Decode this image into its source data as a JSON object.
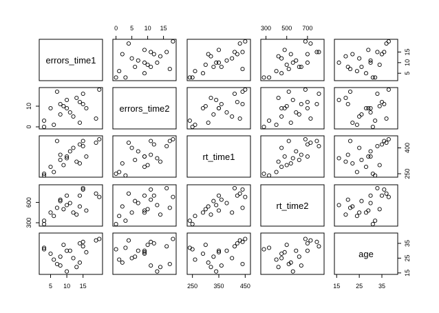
{
  "chart_data": {
    "type": "scatter",
    "title": "",
    "variables": [
      {
        "name": "errors_time1",
        "range": [
          1.5,
          21
        ],
        "ticks": [
          5,
          10,
          15
        ],
        "tick_labels": [
          "5",
          "10",
          "15"
        ]
      },
      {
        "name": "errors_time2",
        "range": [
          -1,
          19
        ],
        "ticks": [
          0,
          10
        ],
        "tick_labels": [
          "0",
          "10"
        ]
      },
      {
        "name": "rt_time1",
        "range": [
          230,
          470
        ],
        "ticks": [
          250,
          350,
          450
        ],
        "tick_labels": [
          "250",
          "350",
          "450"
        ]
      },
      {
        "name": "rt_time2",
        "range": [
          250,
          860
        ],
        "ticks": [
          300,
          500,
          700
        ],
        "tick_labels": [
          "300",
          "500",
          "700"
        ]
      },
      {
        "name": "age",
        "range": [
          14,
          42
        ],
        "ticks": [
          15,
          25,
          35
        ],
        "tick_labels": [
          "15",
          "25",
          "35"
        ]
      }
    ],
    "axes": {
      "top": [
        {
          "column": 1,
          "tick_labels": [
            "0",
            "5",
            "10",
            "15"
          ],
          "ticks": [
            0,
            5,
            10,
            15
          ]
        },
        {
          "column": 3,
          "tick_labels": [
            "300",
            "500",
            "700"
          ],
          "ticks": [
            300,
            500,
            700
          ]
        }
      ],
      "bottom": [
        {
          "column": 0,
          "tick_labels": [
            "5",
            "10",
            "15"
          ],
          "ticks": [
            5,
            10,
            15
          ]
        },
        {
          "column": 2,
          "tick_labels": [
            "250",
            "350",
            "450"
          ],
          "ticks": [
            250,
            350,
            450
          ]
        },
        {
          "column": 4,
          "tick_labels": [
            "15",
            "25",
            "35"
          ],
          "ticks": [
            15,
            25,
            35
          ]
        }
      ],
      "left": [
        {
          "row": 1,
          "tick_labels": [
            "0",
            "10"
          ],
          "ticks": [
            0,
            10
          ]
        },
        {
          "row": 3,
          "tick_labels": [
            "300",
            "600"
          ],
          "ticks": [
            300,
            600
          ]
        }
      ],
      "right": [
        {
          "row": 0,
          "tick_labels": [
            "5",
            "10",
            "15"
          ],
          "ticks": [
            5,
            10,
            15
          ]
        },
        {
          "row": 2,
          "tick_labels": [
            "250",
            "400"
          ],
          "ticks": [
            250,
            400
          ]
        },
        {
          "row": 4,
          "tick_labels": [
            "15",
            "25",
            "35"
          ],
          "ticks": [
            15,
            25,
            35
          ]
        }
      ]
    },
    "points": [
      {
        "errors_time1": 3,
        "errors_time2": 0,
        "rt_time1": 250,
        "rt_time2": 280,
        "age": 31
      },
      {
        "errors_time1": 3,
        "errors_time2": 3,
        "rt_time1": 240,
        "rt_time2": 330,
        "age": 32
      },
      {
        "errors_time1": 5,
        "errors_time2": 9,
        "rt_time1": 290,
        "rt_time2": 450,
        "age": 28
      },
      {
        "errors_time1": 6,
        "errors_time2": 1,
        "rt_time1": 260,
        "rt_time2": 400,
        "age": 24
      },
      {
        "errors_time1": 7,
        "errors_time2": 17,
        "rt_time1": 440,
        "rt_time2": 520,
        "age": 21
      },
      {
        "errors_time1": 8,
        "errors_time2": 6,
        "rt_time1": 330,
        "rt_time2": 620,
        "age": 26
      },
      {
        "errors_time1": 8,
        "errors_time2": 11,
        "rt_time1": 360,
        "rt_time2": 640,
        "age": 20
      },
      {
        "errors_time1": 9,
        "errors_time2": 10,
        "rt_time1": 300,
        "rt_time2": 500,
        "age": 34
      },
      {
        "errors_time1": 10,
        "errors_time2": 13,
        "rt_time1": 340,
        "rt_time2": 560,
        "age": 16
      },
      {
        "errors_time1": 11,
        "errors_time2": 7,
        "rt_time1": 380,
        "rt_time2": 590,
        "age": 30
      },
      {
        "errors_time1": 12,
        "errors_time2": 5,
        "rt_time1": 400,
        "rt_time2": 450,
        "age": 25
      },
      {
        "errors_time1": 13,
        "errors_time2": 14,
        "rt_time1": 320,
        "rt_time2": 420,
        "age": 19
      },
      {
        "errors_time1": 14,
        "errors_time2": 2,
        "rt_time1": 310,
        "rt_time2": 540,
        "age": 22
      },
      {
        "errors_time1": 14,
        "errors_time2": 12,
        "rt_time1": 420,
        "rt_time2": 700,
        "age": 35
      },
      {
        "errors_time1": 15,
        "errors_time2": 11,
        "rt_time1": 440,
        "rt_time2": 790,
        "age": 36
      },
      {
        "errors_time1": 15,
        "errors_time2": 16,
        "rt_time1": 410,
        "rt_time2": 810,
        "age": 33
      },
      {
        "errors_time1": 16,
        "errors_time2": 9,
        "rt_time1": 350,
        "rt_time2": 480,
        "age": 29
      },
      {
        "errors_time1": 19,
        "errors_time2": 4,
        "rt_time1": 430,
        "rt_time2": 730,
        "age": 37
      },
      {
        "errors_time1": 20,
        "errors_time2": 18,
        "rt_time1": 450,
        "rt_time2": 680,
        "age": 38
      },
      {
        "errors_time1": 10,
        "errors_time2": 9,
        "rt_time1": 350,
        "rt_time2": 700,
        "age": 30
      }
    ]
  }
}
